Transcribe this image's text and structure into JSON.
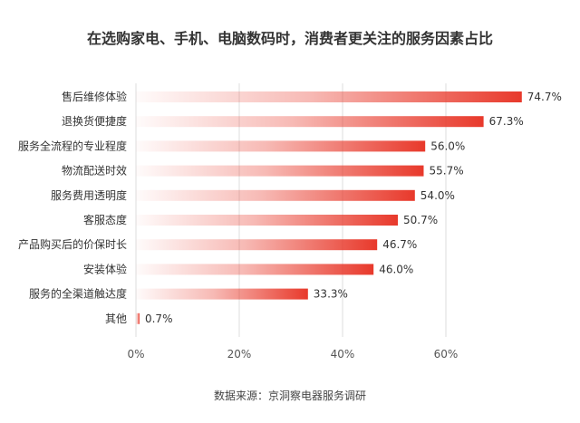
{
  "chart_data": {
    "type": "bar",
    "orientation": "horizontal",
    "title": "在选购家电、手机、电脑数码时，消费者更关注的服务因素占比",
    "categories": [
      "售后维修体验",
      "退换货便捷度",
      "服务全流程的专业程度",
      "物流配送时效",
      "服务费用透明度",
      "客服态度",
      "产品购买后的价保时长",
      "安装体验",
      "服务的全渠道触达度",
      "其他"
    ],
    "values": [
      74.7,
      67.3,
      56.0,
      55.7,
      54.0,
      50.7,
      46.7,
      46.0,
      33.3,
      0.7
    ],
    "value_labels": [
      "74.7%",
      "67.3%",
      "56.0%",
      "55.7%",
      "54.0%",
      "50.7%",
      "46.7%",
      "46.0%",
      "33.3%",
      "0.7%"
    ],
    "xlim": [
      0,
      80
    ],
    "xticks": [
      "0%",
      "20%",
      "40%",
      "60%"
    ],
    "grid": true,
    "legend": "none",
    "bar_color": "#e8392b",
    "source": "数据来源：京洞察电器服务调研"
  }
}
